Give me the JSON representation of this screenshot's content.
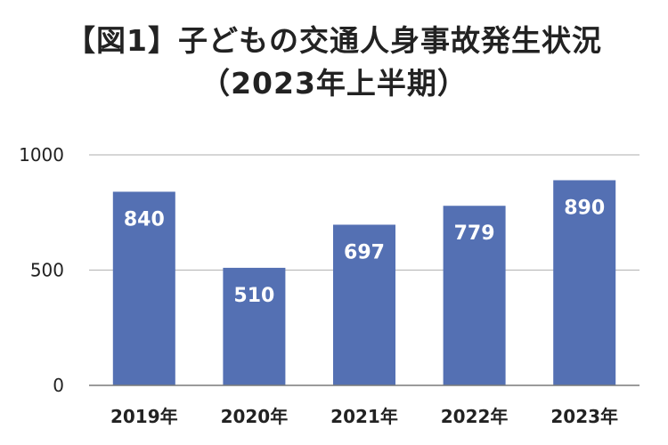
{
  "title": {
    "line1": "【図1】子どもの交通人身事故発生状況",
    "line2": "（2023年上半期）"
  },
  "chart_data": {
    "type": "bar",
    "title": "【図1】子どもの交通人身事故発生状況（2023年上半期）",
    "categories": [
      "2019年",
      "2020年",
      "2021年",
      "2022年",
      "2023年"
    ],
    "values": [
      840,
      510,
      697,
      779,
      890
    ],
    "data_labels": [
      "840",
      "510",
      "697",
      "779",
      "890"
    ],
    "ylim": [
      0,
      1000
    ],
    "yticks": [
      0,
      500,
      1000
    ],
    "grid": true,
    "legend": "none",
    "bar_color": "#5470b3",
    "grid_color": "#bdbdbd",
    "axis_color": "#7a7a7a"
  }
}
